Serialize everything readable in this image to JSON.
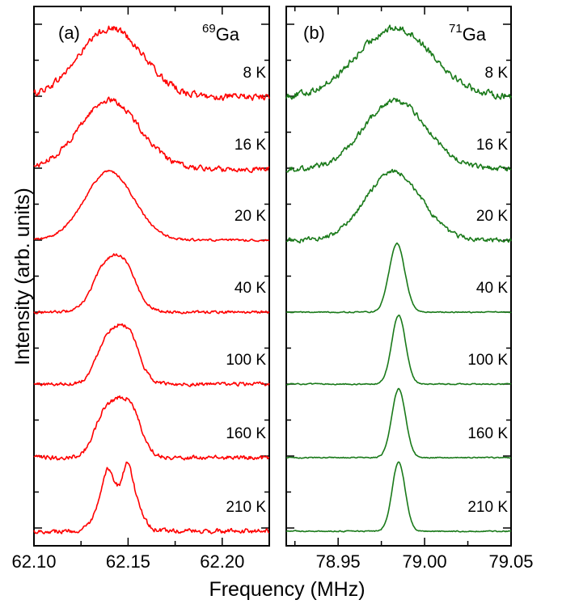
{
  "chart_data": [
    {
      "type": "line",
      "panel_label": "(a)",
      "nucleus_mass": "69",
      "nucleus_symbol": "Ga",
      "series_color": "#ff0000",
      "xlim": [
        62.1,
        62.225
      ],
      "xticks": [
        "62.10",
        "62.15",
        "62.20"
      ],
      "xtick_values": [
        62.1,
        62.15,
        62.2
      ],
      "series": [
        {
          "name": "8 K",
          "temperature_label": "8 K",
          "center": 62.141,
          "width": 0.017,
          "noise": 0.075,
          "shape": "gauss"
        },
        {
          "name": "16 K",
          "temperature_label": "16 K",
          "center": 62.14,
          "width": 0.016,
          "noise": 0.06,
          "shape": "gauss"
        },
        {
          "name": "20 K",
          "temperature_label": "20 K",
          "center": 62.14,
          "width": 0.013,
          "noise": 0.025,
          "shape": "gauss"
        },
        {
          "name": "40 K",
          "temperature_label": "40 K",
          "center": 62.142,
          "halfwidth": 0.011,
          "edge": 0.0035,
          "noise": 0.03,
          "shape": "flat"
        },
        {
          "name": "100 K",
          "temperature_label": "100 K",
          "center": 62.144,
          "halfwidth": 0.011,
          "edge": 0.003,
          "noise": 0.04,
          "shape": "flat"
        },
        {
          "name": "160 K",
          "temperature_label": "160 K",
          "center": 62.144,
          "halfwidth": 0.012,
          "edge": 0.003,
          "noise": 0.05,
          "shape": "flat"
        },
        {
          "name": "210 K",
          "temperature_label": "210 K",
          "center": 62.145,
          "halfwidth": 0.011,
          "edge": 0.0025,
          "noise": 0.05,
          "shape": "double"
        }
      ]
    },
    {
      "type": "line",
      "panel_label": "(b)",
      "nucleus_mass": "71",
      "nucleus_symbol": "Ga",
      "series_color": "#1a7a1a",
      "xlim": [
        78.92,
        79.05
      ],
      "xticks": [
        "78.95",
        "79.00",
        "79.05"
      ],
      "xtick_values": [
        78.95,
        79.0,
        79.05
      ],
      "series": [
        {
          "name": "8 K",
          "temperature_label": "8 K",
          "center": 78.983,
          "width": 0.022,
          "noise": 0.075,
          "shape": "gauss"
        },
        {
          "name": "16 K",
          "temperature_label": "16 K",
          "center": 78.983,
          "width": 0.018,
          "noise": 0.06,
          "shape": "gauss"
        },
        {
          "name": "20 K",
          "temperature_label": "20 K",
          "center": 78.982,
          "width": 0.016,
          "noise": 0.05,
          "shape": "gauss"
        },
        {
          "name": "40 K",
          "temperature_label": "40 K",
          "center": 78.984,
          "width": 0.0045,
          "noise": 0.012,
          "shape": "gauss"
        },
        {
          "name": "100 K",
          "temperature_label": "100 K",
          "center": 78.985,
          "width": 0.004,
          "noise": 0.012,
          "shape": "gauss"
        },
        {
          "name": "160 K",
          "temperature_label": "160 K",
          "center": 78.985,
          "width": 0.004,
          "noise": 0.012,
          "shape": "gauss"
        },
        {
          "name": "210 K",
          "temperature_label": "210 K",
          "center": 78.985,
          "width": 0.0038,
          "noise": 0.012,
          "shape": "gauss"
        }
      ]
    }
  ],
  "axes": {
    "xlabel": "Frequency  (MHz)",
    "ylabel": "Intensity (arb. units)"
  }
}
